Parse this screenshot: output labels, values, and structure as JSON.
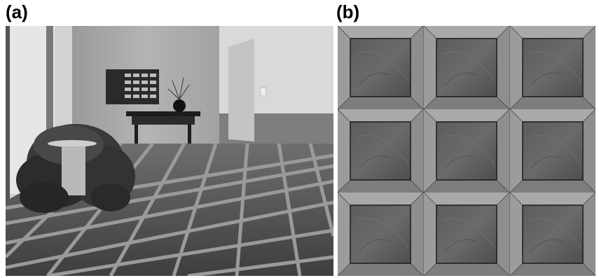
{
  "figure": {
    "panel_a": {
      "label": "(a)"
    },
    "panel_b": {
      "label": "(b)"
    }
  }
}
